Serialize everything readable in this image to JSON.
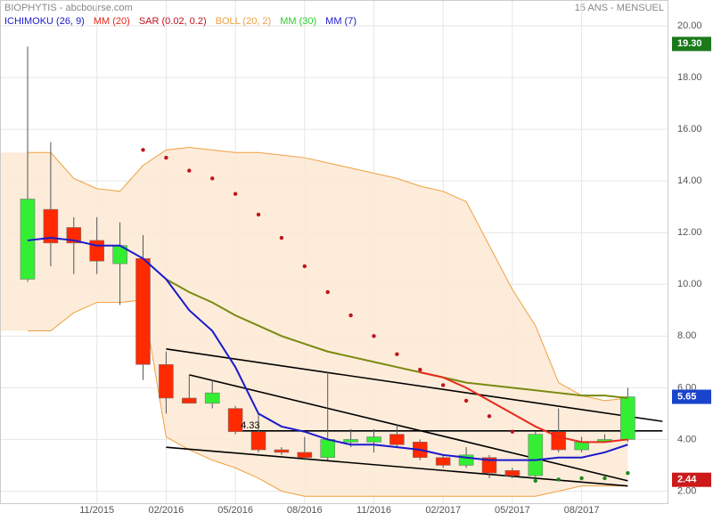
{
  "chart_data": {
    "type": "candlestick",
    "title": "BIOPHYTIS - abcbourse.com",
    "subtitle": "15 ANS - MENSUEL",
    "legend": [
      {
        "name": "ICHIMOKU (26, 9)",
        "color": "#1a1acc"
      },
      {
        "name": "MM (20)",
        "color": "#e8291c"
      },
      {
        "name": "SAR (0.02, 0.2)",
        "color": "#c0141e"
      },
      {
        "name": "BOLL (20, 2)",
        "color": "#f0a040"
      },
      {
        "name": "MM (30)",
        "color": "#2ecc2e"
      },
      {
        "name": "MM (7)",
        "color": "#1a1acc"
      }
    ],
    "categories": [
      null,
      null,
      null,
      "11/2015",
      null,
      null,
      "02/2016",
      null,
      null,
      "05/2016",
      null,
      null,
      "08/2016",
      null,
      null,
      "11/2016",
      null,
      null,
      "02/2017",
      null,
      null,
      "05/2017",
      null,
      null,
      "08/2017",
      null,
      null
    ],
    "open": [
      10.2,
      12.9,
      12.2,
      11.7,
      10.8,
      11.0,
      6.9,
      5.6,
      5.4,
      5.2,
      4.3,
      3.6,
      3.5,
      3.3,
      3.9,
      3.9,
      4.2,
      3.9,
      3.3,
      3.0,
      3.3,
      2.8,
      2.6,
      4.3,
      3.6,
      3.9,
      4.0
    ],
    "high": [
      19.2,
      15.5,
      12.6,
      12.6,
      12.4,
      11.9,
      7.4,
      6.5,
      6.3,
      5.3,
      5.0,
      3.7,
      4.1,
      6.6,
      4.4,
      4.4,
      4.6,
      4.0,
      3.4,
      3.7,
      3.4,
      2.9,
      4.3,
      5.2,
      4.1,
      4.2,
      6.0
    ],
    "low": [
      10.1,
      10.7,
      10.4,
      10.4,
      9.2,
      6.3,
      5.0,
      5.4,
      5.2,
      4.2,
      3.5,
      3.4,
      3.2,
      3.2,
      3.7,
      3.5,
      3.7,
      3.2,
      2.9,
      2.9,
      2.5,
      2.5,
      2.5,
      3.5,
      3.5,
      3.9,
      3.9
    ],
    "close": [
      13.3,
      11.6,
      11.6,
      10.9,
      11.5,
      6.9,
      5.6,
      5.4,
      5.8,
      4.3,
      3.6,
      3.5,
      3.3,
      4.0,
      4.0,
      4.1,
      3.8,
      3.3,
      3.0,
      3.4,
      2.7,
      2.6,
      4.2,
      3.6,
      3.9,
      4.0,
      5.65
    ],
    "up_color": "#33ee33",
    "down_color": "#ff2a00",
    "series": [
      {
        "name": "BOLL (20, 2)",
        "color": "#f0a040",
        "role": "band-upper",
        "values": [
          15.1,
          15.1,
          14.1,
          13.7,
          13.6,
          14.6,
          15.2,
          15.3,
          15.2,
          15.1,
          15.1,
          15.0,
          14.9,
          14.7,
          14.5,
          14.3,
          14.1,
          13.8,
          13.6,
          13.2,
          11.5,
          9.8,
          8.4,
          6.2,
          5.7,
          5.5,
          5.6
        ]
      },
      {
        "name": "BOLL (20, 2)",
        "color": "#f0a040",
        "role": "band-lower",
        "values": [
          8.2,
          8.2,
          8.9,
          9.3,
          9.3,
          9.4,
          4.1,
          3.6,
          3.2,
          2.9,
          2.5,
          2.0,
          1.8,
          1.8,
          1.8,
          1.8,
          1.8,
          1.8,
          1.8,
          1.8,
          1.8,
          1.8,
          1.8,
          2.0,
          2.2,
          2.2,
          2.2
        ]
      },
      {
        "name": "MM (30)",
        "color": "#7a8a10",
        "role": "line",
        "values": [
          null,
          null,
          null,
          null,
          null,
          null,
          10.2,
          9.7,
          9.3,
          8.8,
          8.4,
          8.0,
          7.7,
          7.4,
          7.2,
          7.0,
          6.8,
          6.6,
          6.4,
          6.2,
          6.1,
          6.0,
          5.9,
          5.8,
          5.7,
          5.7,
          5.6
        ]
      },
      {
        "name": "MM (20)",
        "color": "#e8291c",
        "role": "line",
        "values": [
          null,
          null,
          null,
          null,
          null,
          null,
          null,
          null,
          null,
          null,
          null,
          null,
          null,
          null,
          null,
          null,
          null,
          6.6,
          6.4,
          6.0,
          5.5,
          5.0,
          4.5,
          4.1,
          3.9,
          3.9,
          4.0
        ]
      },
      {
        "name": "MM (7)",
        "color": "#1a1acc",
        "role": "line",
        "values": [
          11.7,
          11.8,
          11.7,
          11.5,
          11.5,
          11.0,
          10.2,
          9.0,
          8.2,
          6.8,
          5.0,
          4.5,
          4.3,
          4.0,
          3.8,
          3.8,
          3.7,
          3.6,
          3.4,
          3.3,
          3.2,
          3.2,
          3.2,
          3.3,
          3.3,
          3.5,
          3.8
        ]
      },
      {
        "name": "SAR (0.02, 0.2)",
        "color": "#c0141e",
        "role": "dots",
        "values": [
          null,
          null,
          null,
          null,
          null,
          15.2,
          14.9,
          14.4,
          14.1,
          13.5,
          12.7,
          11.8,
          10.7,
          9.7,
          8.8,
          8.0,
          7.3,
          6.7,
          6.1,
          5.5,
          4.9,
          4.3,
          2.4,
          2.45,
          2.5,
          2.5,
          2.7
        ]
      }
    ],
    "trend_lines": [
      {
        "x": [
          6,
          27.5
        ],
        "y": [
          7.5,
          4.7
        ]
      },
      {
        "x": [
          7,
          26
        ],
        "y": [
          6.5,
          2.4
        ]
      },
      {
        "x": [
          6,
          26
        ],
        "y": [
          3.7,
          2.2
        ]
      },
      {
        "x": [
          9,
          27.5
        ],
        "y": [
          4.33,
          4.33
        ]
      }
    ],
    "annotation": {
      "text": "4.33",
      "x": 9,
      "y": 4.33
    },
    "price_markers": [
      {
        "value": 19.3,
        "label": "19.30",
        "color": "#1a7a1a"
      },
      {
        "value": 5.65,
        "label": "5.65",
        "color": "#1a44cc"
      },
      {
        "value": 2.44,
        "label": "2.44",
        "color": "#cc1a1a"
      }
    ],
    "ylim": [
      1.5,
      21
    ],
    "yticks": [
      {
        "value": 2,
        "label": "2.00"
      },
      {
        "value": 4,
        "label": "4.00"
      },
      {
        "value": 6,
        "label": "6.00"
      },
      {
        "value": 8,
        "label": "8.00"
      },
      {
        "value": 10,
        "label": "10.00"
      },
      {
        "value": 12,
        "label": "12.00"
      },
      {
        "value": 14,
        "label": "14.00"
      },
      {
        "value": 16,
        "label": "16.00"
      },
      {
        "value": 18,
        "label": "18.00"
      },
      {
        "value": 20,
        "label": "20.00"
      }
    ],
    "grid": true
  }
}
